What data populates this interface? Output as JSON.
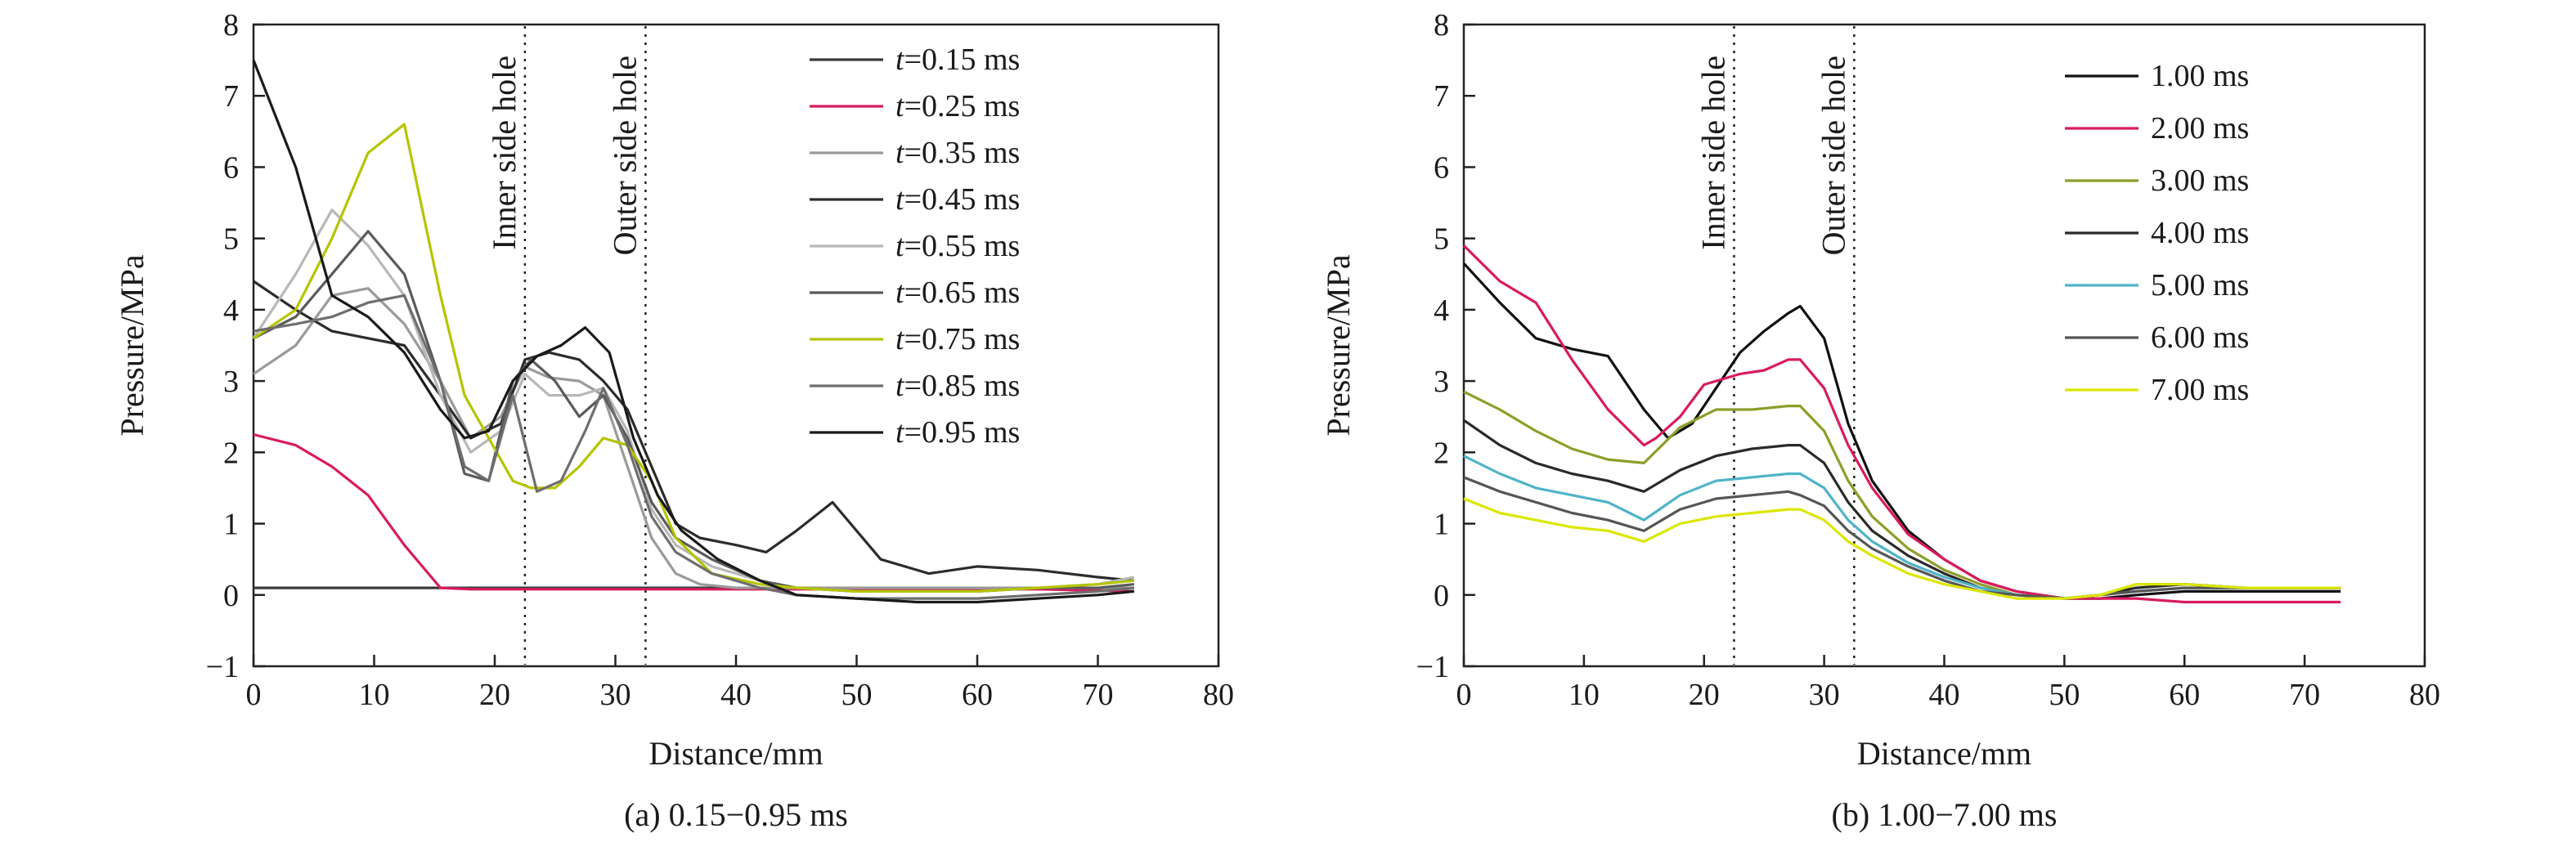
{
  "chart_data": [
    {
      "type": "line",
      "caption": "(a) 0.15−0.95 ms",
      "xlabel": "Distance/mm",
      "ylabel": "Pressure/MPa",
      "xlim": [
        0,
        80
      ],
      "ylim": [
        -1,
        8
      ],
      "xticks": [
        "0",
        "10",
        "20",
        "30",
        "40",
        "50",
        "60",
        "70",
        "80"
      ],
      "yticks": [
        "−1",
        "0",
        "1",
        "2",
        "3",
        "4",
        "5",
        "6",
        "7",
        "8"
      ],
      "legend_position": "top-right",
      "annotations": [
        {
          "text": "Inner side hole",
          "x": 22.5
        },
        {
          "text": "Outer side hole",
          "x": 32.5
        }
      ],
      "series": [
        {
          "name_italic": "t",
          "name_rest": "=0.15 ms",
          "color": "#3a3a3a",
          "x": [
            0,
            10,
            20,
            30,
            40,
            50,
            60,
            70,
            73
          ],
          "y": [
            0.1,
            0.1,
            0.1,
            0.1,
            0.1,
            0.1,
            0.1,
            0.1,
            0.1
          ]
        },
        {
          "name_italic": "t",
          "name_rest": "=0.25 ms",
          "color": "#d81b60",
          "x": [
            0,
            3.5,
            6.5,
            9.5,
            12.5,
            15.5,
            18,
            25,
            35,
            45,
            55,
            65,
            73
          ],
          "y": [
            2.25,
            2.1,
            1.8,
            1.4,
            0.7,
            0.1,
            0.08,
            0.08,
            0.08,
            0.08,
            0.08,
            0.08,
            0.05
          ]
        },
        {
          "name_italic": "t",
          "name_rest": "=0.35 ms",
          "color": "#9a9a9a",
          "x": [
            0,
            3.5,
            6.5,
            9.5,
            12.5,
            15.5,
            18,
            20.5,
            22.5,
            24.5,
            27,
            29,
            31,
            33,
            35,
            37,
            40,
            45,
            50,
            55,
            60,
            65,
            73
          ],
          "y": [
            3.1,
            3.5,
            4.2,
            4.3,
            3.8,
            3.0,
            2.2,
            2.5,
            3.2,
            3.05,
            3.0,
            2.8,
            1.8,
            0.8,
            0.3,
            0.15,
            0.1,
            0.1,
            0.1,
            0.1,
            0.1,
            0.1,
            0.1
          ]
        },
        {
          "name_italic": "t",
          "name_rest": "=0.45 ms",
          "color": "#2c2c2c",
          "x": [
            0,
            3.5,
            6.5,
            9.5,
            12.5,
            15.5,
            18,
            20.5,
            22.5,
            24.5,
            27,
            29,
            31,
            33,
            35,
            37,
            40,
            42.5,
            45,
            48,
            50,
            52,
            56,
            60,
            65,
            70,
            73
          ],
          "y": [
            4.4,
            4.0,
            3.7,
            3.6,
            3.5,
            2.8,
            2.2,
            2.4,
            3.3,
            3.4,
            3.3,
            3.0,
            2.6,
            1.8,
            1.0,
            0.8,
            0.7,
            0.6,
            0.9,
            1.3,
            0.9,
            0.5,
            0.3,
            0.4,
            0.35,
            0.25,
            0.2
          ]
        },
        {
          "name_italic": "t",
          "name_rest": "=0.55 ms",
          "color": "#b8b8b8",
          "x": [
            0,
            3.5,
            6.5,
            9.5,
            12.5,
            15.5,
            18,
            20.5,
            22.5,
            24.5,
            27,
            29,
            31,
            33,
            35,
            38,
            42,
            45,
            50,
            55,
            60,
            65,
            70,
            73
          ],
          "y": [
            3.6,
            4.5,
            5.4,
            4.9,
            4.2,
            2.8,
            2.0,
            2.3,
            3.1,
            2.8,
            2.8,
            2.9,
            2.3,
            1.2,
            0.7,
            0.4,
            0.2,
            0.1,
            0.05,
            0.05,
            0.05,
            0.1,
            0.15,
            0.25
          ]
        },
        {
          "name_italic": "t",
          "name_rest": "=0.65 ms",
          "color": "#5a5a5a",
          "x": [
            0,
            3.5,
            6.5,
            9.5,
            12.5,
            15.5,
            17.5,
            19.5,
            21.5,
            23,
            25,
            27,
            29,
            31,
            33,
            35,
            38,
            42,
            45,
            50,
            55,
            60,
            65,
            70,
            73
          ],
          "y": [
            3.6,
            3.9,
            4.5,
            5.1,
            4.5,
            3.0,
            1.7,
            1.6,
            3.0,
            3.3,
            3.0,
            2.5,
            2.8,
            2.2,
            1.3,
            0.8,
            0.5,
            0.2,
            0.1,
            0.05,
            0.05,
            0.05,
            0.1,
            0.1,
            0.15
          ]
        },
        {
          "name_italic": "t",
          "name_rest": "=0.75 ms",
          "color": "#b5c400",
          "x": [
            0,
            3.5,
            6.5,
            9.5,
            12.5,
            15.5,
            17.5,
            19.5,
            21.5,
            23,
            25,
            27,
            29,
            31,
            33,
            35,
            38,
            42,
            45,
            50,
            55,
            60,
            65,
            70,
            73
          ],
          "y": [
            3.6,
            4.0,
            5.0,
            6.2,
            6.6,
            4.2,
            2.8,
            2.2,
            1.6,
            1.5,
            1.5,
            1.8,
            2.2,
            2.1,
            1.6,
            0.8,
            0.3,
            0.15,
            0.1,
            0.05,
            0.05,
            0.05,
            0.1,
            0.15,
            0.2
          ]
        },
        {
          "name_italic": "t",
          "name_rest": "=0.85 ms",
          "color": "#6e6e6e",
          "x": [
            0,
            3.5,
            6.5,
            9.5,
            12.5,
            15.5,
            17.5,
            19.5,
            21.5,
            23.5,
            25.5,
            27.5,
            29,
            31,
            33,
            35,
            38,
            42,
            45,
            50,
            55,
            60,
            65,
            70,
            73
          ],
          "y": [
            3.7,
            3.8,
            3.9,
            4.1,
            4.2,
            3.0,
            1.8,
            1.6,
            2.8,
            1.45,
            1.6,
            2.3,
            2.9,
            2.1,
            1.1,
            0.6,
            0.3,
            0.1,
            0.0,
            -0.05,
            -0.05,
            -0.05,
            0.0,
            0.05,
            0.1
          ]
        },
        {
          "name_italic": "t",
          "name_rest": "=0.95 ms",
          "color": "#1a1a1a",
          "x": [
            0,
            3.5,
            6.5,
            9.5,
            12.5,
            15.5,
            17.5,
            19.5,
            21.5,
            23.5,
            25.5,
            27.5,
            29.5,
            31.5,
            33.5,
            35.5,
            38.5,
            42,
            45,
            50,
            55,
            60,
            65,
            70,
            73
          ],
          "y": [
            7.5,
            6.0,
            4.2,
            3.9,
            3.4,
            2.6,
            2.2,
            2.3,
            3.0,
            3.35,
            3.5,
            3.75,
            3.4,
            2.2,
            1.4,
            0.9,
            0.5,
            0.2,
            0.0,
            -0.05,
            -0.1,
            -0.1,
            -0.05,
            0.0,
            0.05
          ]
        }
      ]
    },
    {
      "type": "line",
      "caption": "(b) 1.00−7.00 ms",
      "xlabel": "Distance/mm",
      "ylabel": "Pressure/MPa",
      "xlim": [
        0,
        80
      ],
      "ylim": [
        -1,
        8
      ],
      "xticks": [
        "0",
        "10",
        "20",
        "30",
        "40",
        "50",
        "60",
        "70",
        "80"
      ],
      "yticks": [
        "−1",
        "0",
        "1",
        "2",
        "3",
        "4",
        "5",
        "6",
        "7",
        "8"
      ],
      "legend_position": "top-right",
      "annotations": [
        {
          "text": "Inner side hole",
          "x": 22.5
        },
        {
          "text": "Outer side hole",
          "x": 32.5
        }
      ],
      "series": [
        {
          "name_italic": "",
          "name_rest": "1.00 ms",
          "color": "#111111",
          "x": [
            0,
            3,
            6,
            9,
            12,
            15,
            17,
            19,
            21,
            23,
            25,
            27,
            28,
            30,
            32,
            34,
            37,
            40,
            43,
            46,
            50,
            53,
            56,
            60,
            65,
            70,
            73
          ],
          "y": [
            4.65,
            4.1,
            3.6,
            3.45,
            3.35,
            2.6,
            2.2,
            2.4,
            2.9,
            3.4,
            3.7,
            3.95,
            4.05,
            3.6,
            2.4,
            1.6,
            0.9,
            0.5,
            0.2,
            0.05,
            -0.05,
            -0.05,
            0.0,
            0.05,
            0.05,
            0.05,
            0.05
          ]
        },
        {
          "name_italic": "",
          "name_rest": "2.00 ms",
          "color": "#d81b60",
          "x": [
            0,
            3,
            6,
            9,
            12,
            15,
            16,
            18,
            20,
            23,
            25,
            27,
            28,
            30,
            32,
            34,
            37,
            40,
            43,
            46,
            50,
            53,
            56,
            60,
            65,
            70,
            73
          ],
          "y": [
            4.9,
            4.4,
            4.1,
            3.3,
            2.6,
            2.1,
            2.2,
            2.5,
            2.95,
            3.1,
            3.15,
            3.3,
            3.3,
            2.9,
            2.1,
            1.5,
            0.85,
            0.5,
            0.2,
            0.05,
            -0.05,
            -0.05,
            -0.05,
            -0.1,
            -0.1,
            -0.1,
            -0.1
          ]
        },
        {
          "name_italic": "",
          "name_rest": "3.00 ms",
          "color": "#8e9e2a",
          "x": [
            0,
            3,
            6,
            9,
            12,
            15,
            18,
            21,
            24,
            27,
            28,
            30,
            32,
            34,
            37,
            40,
            43,
            46,
            50,
            53,
            56,
            60,
            65,
            70,
            73
          ],
          "y": [
            2.85,
            2.6,
            2.3,
            2.05,
            1.9,
            1.85,
            2.35,
            2.6,
            2.6,
            2.65,
            2.65,
            2.3,
            1.6,
            1.1,
            0.65,
            0.35,
            0.15,
            0.0,
            -0.05,
            0.0,
            0.15,
            0.15,
            0.1,
            0.1,
            0.1
          ]
        },
        {
          "name_italic": "",
          "name_rest": "4.00 ms",
          "color": "#2a2a2a",
          "x": [
            0,
            3,
            6,
            9,
            12,
            15,
            18,
            21,
            24,
            27,
            28,
            30,
            32,
            34,
            37,
            40,
            43,
            46,
            50,
            53,
            56,
            60,
            65,
            70,
            73
          ],
          "y": [
            2.45,
            2.1,
            1.85,
            1.7,
            1.6,
            1.45,
            1.75,
            1.95,
            2.05,
            2.1,
            2.1,
            1.85,
            1.3,
            0.9,
            0.55,
            0.3,
            0.1,
            0.0,
            -0.05,
            0.0,
            0.1,
            0.15,
            0.1,
            0.1,
            0.1
          ]
        },
        {
          "name_italic": "",
          "name_rest": "5.00 ms",
          "color": "#4fb3c8",
          "x": [
            0,
            3,
            6,
            9,
            12,
            15,
            18,
            21,
            24,
            27,
            28,
            30,
            32,
            34,
            37,
            40,
            43,
            46,
            50,
            53,
            56,
            60,
            65,
            70,
            73
          ],
          "y": [
            1.95,
            1.7,
            1.5,
            1.4,
            1.3,
            1.05,
            1.4,
            1.6,
            1.65,
            1.7,
            1.7,
            1.5,
            1.05,
            0.75,
            0.45,
            0.25,
            0.1,
            0.0,
            -0.05,
            0.0,
            0.05,
            0.1,
            0.1,
            0.1,
            0.1
          ]
        },
        {
          "name_italic": "",
          "name_rest": "6.00 ms",
          "color": "#555555",
          "x": [
            0,
            3,
            6,
            9,
            12,
            15,
            18,
            21,
            24,
            27,
            28,
            30,
            32,
            34,
            37,
            40,
            43,
            46,
            50,
            53,
            56,
            60,
            65,
            70,
            73
          ],
          "y": [
            1.65,
            1.45,
            1.3,
            1.15,
            1.05,
            0.9,
            1.2,
            1.35,
            1.4,
            1.45,
            1.4,
            1.25,
            0.9,
            0.65,
            0.4,
            0.2,
            0.05,
            0.0,
            -0.05,
            0.0,
            0.05,
            0.1,
            0.1,
            0.1,
            0.1
          ]
        },
        {
          "name_italic": "",
          "name_rest": "7.00 ms",
          "color": "#dce600",
          "x": [
            0,
            3,
            6,
            9,
            12,
            15,
            18,
            21,
            24,
            27,
            28,
            30,
            32,
            34,
            37,
            40,
            43,
            46,
            50,
            53,
            56,
            60,
            65,
            70,
            73
          ],
          "y": [
            1.35,
            1.15,
            1.05,
            0.95,
            0.9,
            0.75,
            1.0,
            1.1,
            1.15,
            1.2,
            1.2,
            1.05,
            0.75,
            0.55,
            0.3,
            0.15,
            0.05,
            -0.05,
            -0.05,
            0.0,
            0.15,
            0.15,
            0.1,
            0.1,
            0.1
          ]
        }
      ]
    }
  ]
}
